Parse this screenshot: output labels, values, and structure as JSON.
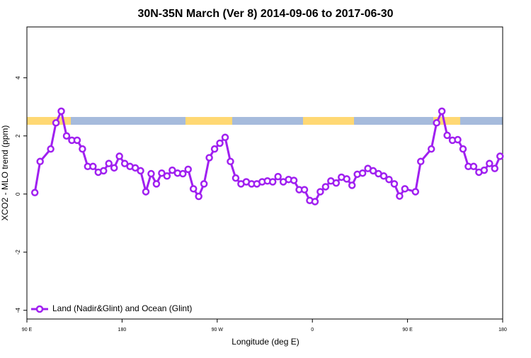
{
  "chart_data": {
    "type": "line",
    "title": "30N-35N March (Ver 8)   2014-09-06 to 2017-06-30",
    "xlabel": "Longitude (deg E)",
    "ylabel": "XCO2 - MLO trend (ppm)",
    "x": [
      97.5,
      102.5,
      112.5,
      117.5,
      122.5,
      127.5,
      132.5,
      137.5,
      142.5,
      147.5,
      152.5,
      157.5,
      162.5,
      167.5,
      172.5,
      177.5,
      182.5,
      187.5,
      192.5,
      197.5,
      202.5,
      207.5,
      212.5,
      217.5,
      222.5,
      227.5,
      232.5,
      237.5,
      242.5,
      247.5,
      252.5,
      257.5,
      262.5,
      267.5,
      272.5,
      277.5,
      282.5,
      287.5,
      292.5,
      297.5,
      302.5,
      307.5,
      312.5,
      317.5,
      322.5,
      327.5,
      332.5,
      337.5,
      342.5,
      347.5,
      352.5,
      357.5,
      362.5,
      367.5,
      372.5,
      377.5,
      382.5,
      387.5,
      392.5,
      397.5,
      402.5,
      407.5,
      412.5,
      417.5,
      422.5,
      427.5,
      432.5,
      437.5,
      442.5,
      447.5,
      457.5,
      462.5,
      472.5,
      477.5,
      482.5,
      487.5,
      492.5,
      497.5,
      502.5,
      507.5,
      512.5,
      517.5,
      522.5,
      527.5,
      532.5,
      537.5
    ],
    "series": [
      {
        "name": "Land (Nadir&Glint) and Ocean (Glint)",
        "color": "#a020f0",
        "values": [
          0.05,
          1.12,
          1.55,
          2.45,
          2.85,
          2.0,
          1.85,
          1.85,
          1.55,
          0.95,
          0.95,
          0.75,
          0.8,
          1.05,
          0.9,
          1.3,
          1.05,
          0.95,
          0.9,
          0.8,
          0.08,
          0.7,
          0.35,
          0.72,
          0.62,
          0.82,
          0.72,
          0.7,
          0.85,
          0.18,
          -0.08,
          0.35,
          1.25,
          1.55,
          1.75,
          1.95,
          1.12,
          0.55,
          0.35,
          0.42,
          0.35,
          0.35,
          0.42,
          0.45,
          0.42,
          0.6,
          0.42,
          0.5,
          0.47,
          0.15,
          0.15,
          -0.22,
          -0.26,
          0.08,
          0.25,
          0.45,
          0.38,
          0.58,
          0.52,
          0.3,
          0.68,
          0.72,
          0.88,
          0.8,
          0.7,
          0.62,
          0.5,
          0.35,
          -0.07,
          0.18,
          0.08,
          1.12,
          1.55,
          2.45,
          2.85,
          2.02,
          1.85,
          1.87,
          1.55,
          0.95,
          0.95,
          0.75,
          0.82,
          1.05,
          0.88,
          1.3
        ]
      }
    ],
    "xlim": [
      90,
      540
    ],
    "xticks": [
      {
        "value": 90,
        "label": "90 E"
      },
      180,
      {
        "value": 270,
        "label": "90 W"
      },
      {
        "value": 360,
        "label": "0"
      },
      {
        "value": 450,
        "label": "90 E"
      },
      {
        "value": 540,
        "label": "180"
      }
    ],
    "ylim": [
      -4.3,
      5.75
    ],
    "yticks": [
      -4,
      -2,
      0,
      2,
      4
    ],
    "legend": "bottomleft"
  }
}
